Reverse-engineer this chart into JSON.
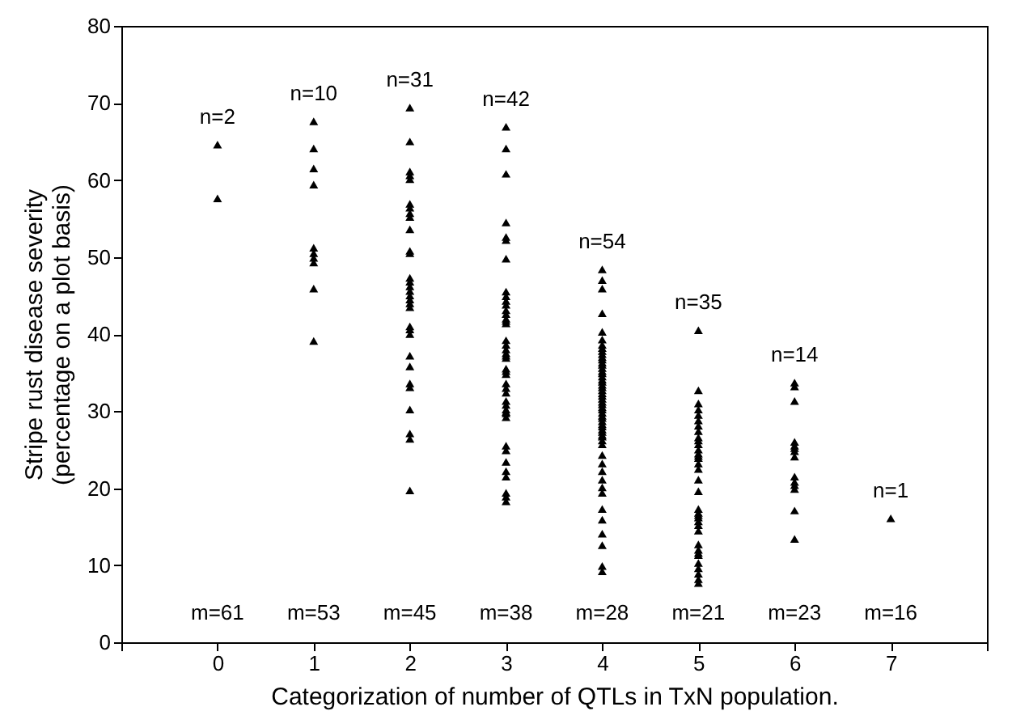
{
  "chart_data": {
    "type": "scatter",
    "xlabel": "Categorization of number of QTLs in TxN population.",
    "ylabel": "Stripe rust disease severity\n(percentage on a plot basis)",
    "xlim": [
      -1,
      8
    ],
    "xticks": [
      {
        "value": -1,
        "label": null
      },
      0,
      1,
      2,
      3,
      4,
      5,
      6,
      7,
      {
        "value": 8,
        "label": null
      }
    ],
    "ylim": [
      0,
      80
    ],
    "yticks": [
      0,
      10,
      20,
      30,
      40,
      50,
      60,
      70,
      80
    ],
    "grid": false,
    "marker": "triangle",
    "series": [
      {
        "color": "#000000",
        "x": [
          0,
          0,
          1,
          1,
          1,
          1,
          1,
          1,
          1,
          1,
          1,
          1,
          2,
          2,
          2,
          2,
          2,
          2,
          2,
          2,
          2,
          2,
          2,
          2,
          2,
          2,
          2,
          2,
          2,
          2,
          2,
          2,
          2,
          2,
          2,
          2,
          2,
          2,
          2,
          2,
          2,
          2,
          2,
          3,
          3,
          3,
          3,
          3,
          3,
          3,
          3,
          3,
          3,
          3,
          3,
          3,
          3,
          3,
          3,
          3,
          3,
          3,
          3,
          3,
          3,
          3,
          3,
          3,
          3,
          3,
          3,
          3,
          3,
          3,
          3,
          3,
          3,
          3,
          3,
          3,
          3,
          3,
          3,
          3,
          3,
          4,
          4,
          4,
          4,
          4,
          4,
          4,
          4,
          4,
          4,
          4,
          4,
          4,
          4,
          4,
          4,
          4,
          4,
          4,
          4,
          4,
          4,
          4,
          4,
          4,
          4,
          4,
          4,
          4,
          4,
          4,
          4,
          4,
          4,
          4,
          4,
          4,
          4,
          4,
          4,
          4,
          4,
          4,
          4,
          4,
          4,
          4,
          4,
          4,
          4,
          4,
          4,
          4,
          4,
          5,
          5,
          5,
          5,
          5,
          5,
          5,
          5,
          5,
          5,
          5,
          5,
          5,
          5,
          5,
          5,
          5,
          5,
          5,
          5,
          5,
          5,
          5,
          5,
          5,
          5,
          5,
          5,
          5,
          5,
          5,
          5,
          5,
          5,
          5,
          6,
          6,
          6,
          6,
          6,
          6,
          6,
          6,
          6,
          6,
          6,
          6,
          6,
          6,
          7
        ],
        "values": [
          64.6,
          57.6,
          67.6,
          64.1,
          61.5,
          59.4,
          51.2,
          50.5,
          49.9,
          49.3,
          45.9,
          39.1,
          69.4,
          65.0,
          61.1,
          60.6,
          60.1,
          56.9,
          56.4,
          55.7,
          55.2,
          53.6,
          50.8,
          50.5,
          47.3,
          46.8,
          46.2,
          45.6,
          45.0,
          44.5,
          44.0,
          43.5,
          41.0,
          40.6,
          40.0,
          37.2,
          35.8,
          33.6,
          33.1,
          30.2,
          27.1,
          26.4,
          19.7,
          66.9,
          64.1,
          60.8,
          54.5,
          52.6,
          52.2,
          49.8,
          45.5,
          44.9,
          44.3,
          43.8,
          43.1,
          42.6,
          42.0,
          41.7,
          41.4,
          39.2,
          38.6,
          38.0,
          37.5,
          37.2,
          36.9,
          35.5,
          35.2,
          34.8,
          33.6,
          33.0,
          32.4,
          31.3,
          30.8,
          30.2,
          29.9,
          29.7,
          29.2,
          25.5,
          24.9,
          23.4,
          22.2,
          21.5,
          19.4,
          18.9,
          18.3,
          14.1,
          48.4,
          47.0,
          45.9,
          42.7,
          40.3,
          39.3,
          38.6,
          38.2,
          37.8,
          37.4,
          37.0,
          36.7,
          36.3,
          36.0,
          35.6,
          35.2,
          34.9,
          34.5,
          34.1,
          33.8,
          33.4,
          33.1,
          32.7,
          32.3,
          32.0,
          31.6,
          31.2,
          30.9,
          30.5,
          30.2,
          29.8,
          29.4,
          29.1,
          28.7,
          28.3,
          28.0,
          27.6,
          27.3,
          26.9,
          26.7,
          26.2,
          25.7,
          24.3,
          23.2,
          22.2,
          21.1,
          20.1,
          19.4,
          17.3,
          15.9,
          12.6,
          9.9,
          9.2,
          40.5,
          32.7,
          31.0,
          30.2,
          29.5,
          28.8,
          28.1,
          27.4,
          26.6,
          26.2,
          25.7,
          25.0,
          24.5,
          24.2,
          23.9,
          23.2,
          22.5,
          21.1,
          19.6,
          17.3,
          16.8,
          16.5,
          16.2,
          15.7,
          15.2,
          14.5,
          12.7,
          12.0,
          11.6,
          11.3,
          10.3,
          9.6,
          8.9,
          8.2,
          7.7,
          33.7,
          33.2,
          31.3,
          26.0,
          25.5,
          25.2,
          24.8,
          24.1,
          21.5,
          20.8,
          20.4,
          19.9,
          17.1,
          13.4,
          16.1
        ]
      }
    ],
    "annotations": [
      "n=2",
      "n=10",
      "n=31",
      "n=42",
      "n=54",
      "n=35",
      "n=14",
      "n=1",
      "m=61",
      "m=53",
      "m=45",
      "m=38",
      "m=28",
      "m=21",
      "m=23",
      "m=16"
    ]
  }
}
